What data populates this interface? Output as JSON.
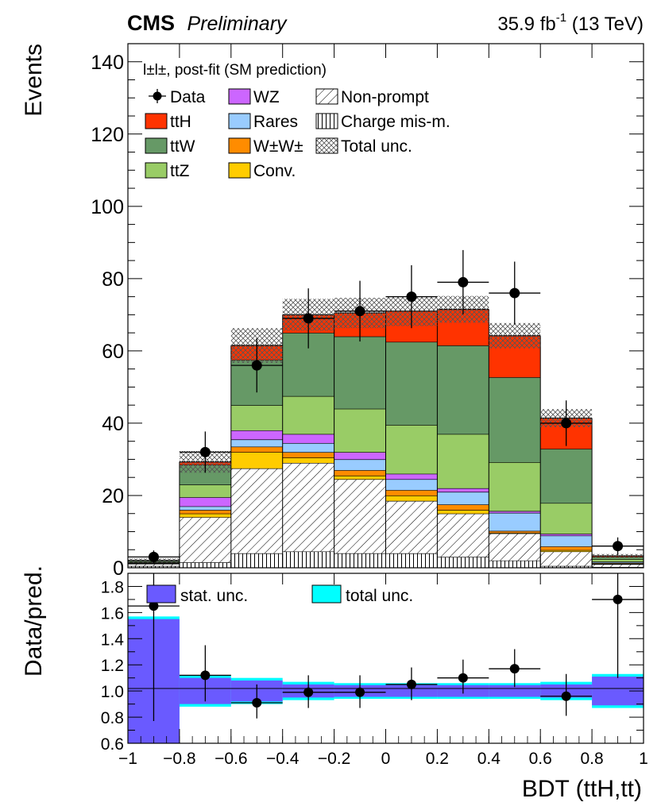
{
  "header": {
    "experiment": "CMS",
    "status": "Preliminary",
    "lumi_text": "35.9 fb",
    "lumi_sup": "-1",
    "energy": " (13 TeV)"
  },
  "chart_data": [
    {
      "type": "bar",
      "stacked": true,
      "panel": "main",
      "title": "CMS Preliminary",
      "ylabel": "Events",
      "xlabel": "",
      "channel_label": "l±l±, post-fit (SM prediction)",
      "ylim": [
        0,
        145
      ],
      "yticks": [
        0,
        20,
        40,
        60,
        80,
        100,
        120,
        140
      ],
      "bin_edges": [
        -1,
        -0.8,
        -0.6,
        -0.4,
        -0.2,
        0,
        0.2,
        0.4,
        0.6,
        0.8,
        1
      ],
      "series": [
        {
          "name": "Charge mis-m.",
          "color": "#ffffff",
          "pattern": "vertical",
          "values": [
            0.5,
            1.5,
            4.0,
            4.5,
            4.0,
            4.0,
            3.0,
            2.0,
            0.5,
            0.2
          ]
        },
        {
          "name": "Non-prompt",
          "color": "#ffffff",
          "pattern": "diagonal",
          "values": [
            0.6,
            12.5,
            23.5,
            24.5,
            20.5,
            14.5,
            12.0,
            7.5,
            4.0,
            0.8
          ]
        },
        {
          "name": "Conv.",
          "color": "#ffcc00",
          "values": [
            0.1,
            1.0,
            4.5,
            1.5,
            1.0,
            1.5,
            1.0,
            0.2,
            0.4,
            0.1
          ]
        },
        {
          "name": "W±W±",
          "color": "#ff8c00",
          "values": [
            0.1,
            1.0,
            1.5,
            1.5,
            1.5,
            1.5,
            1.5,
            0.5,
            1.0,
            0.2
          ]
        },
        {
          "name": "Rares",
          "color": "#99ccff",
          "values": [
            0.1,
            1.0,
            2.0,
            2.5,
            3.0,
            3.0,
            3.5,
            5.0,
            3.0,
            0.3
          ]
        },
        {
          "name": "WZ",
          "color": "#cc66ff",
          "values": [
            0.1,
            2.5,
            2.5,
            2.5,
            2.0,
            1.5,
            1.0,
            0.5,
            0.5,
            0.1
          ]
        },
        {
          "name": "ttZ",
          "color": "#99cc66",
          "values": [
            0.2,
            3.5,
            7.0,
            10.5,
            12.0,
            13.5,
            15.0,
            13.5,
            8.5,
            0.7
          ]
        },
        {
          "name": "ttW",
          "color": "#669966",
          "values": [
            0.3,
            5.5,
            12.5,
            17.5,
            20.0,
            23.0,
            24.5,
            23.5,
            15.0,
            0.6
          ]
        },
        {
          "name": "ttH",
          "color": "#ff3300",
          "values": [
            0.0,
            0.8,
            4.0,
            5.0,
            6.5,
            8.5,
            10.0,
            11.5,
            8.5,
            0.3
          ]
        }
      ],
      "total_unc": [
        0.6,
        3.0,
        4.8,
        4.4,
        4.2,
        4.1,
        3.7,
        3.5,
        2.5,
        0.5
      ],
      "data": {
        "name": "Data",
        "x": [
          -0.9,
          -0.7,
          -0.5,
          -0.3,
          -0.1,
          0.1,
          0.3,
          0.5,
          0.7,
          0.9
        ],
        "y": [
          3,
          32,
          56,
          69,
          71,
          75,
          79,
          76,
          40,
          6
        ],
        "yerr": [
          1.8,
          5.7,
          7.5,
          8.3,
          8.4,
          8.7,
          8.9,
          8.7,
          6.3,
          2.4
        ]
      },
      "legend": [
        {
          "label": "Data",
          "kind": "marker"
        },
        {
          "label": "ttH",
          "kind": "fill",
          "color": "#ff3300"
        },
        {
          "label": "ttW",
          "kind": "fill",
          "color": "#669966"
        },
        {
          "label": "ttZ",
          "kind": "fill",
          "color": "#99cc66"
        },
        {
          "label": "WZ",
          "kind": "fill",
          "color": "#cc66ff"
        },
        {
          "label": "Rares",
          "kind": "fill",
          "color": "#99ccff"
        },
        {
          "label": "W±W±",
          "kind": "fill",
          "color": "#ff8c00"
        },
        {
          "label": "Conv.",
          "kind": "fill",
          "color": "#ffcc00"
        },
        {
          "label": "Non-prompt",
          "kind": "hatch-diag"
        },
        {
          "label": "Charge mis-m.",
          "kind": "hatch-vert"
        },
        {
          "label": "Total unc.",
          "kind": "hatch-cross"
        }
      ],
      "legend_position": "top-left",
      "grid": false
    },
    {
      "type": "bar",
      "panel": "ratio",
      "ylabel": "Data/pred.",
      "xlabel": "BDT (ttH,tt)",
      "ylim": [
        0.6,
        1.9
      ],
      "yticks": [
        0.6,
        0.8,
        1.0,
        1.2,
        1.4,
        1.6,
        1.8
      ],
      "ytick_labels": [
        "0.6",
        "0.8",
        "1.0",
        "1.2",
        "1.4",
        "1.6",
        "1.8"
      ],
      "xlim": [
        -1,
        1
      ],
      "xticks": [
        -1,
        -0.8,
        -0.6,
        -0.4,
        -0.2,
        0,
        0.2,
        0.4,
        0.6,
        0.8,
        1
      ],
      "xtick_labels": [
        "−1",
        "−0.8",
        "−0.6",
        "−0.4",
        "−0.2",
        "0",
        "0.2",
        "0.4",
        "0.6",
        "0.8",
        "1"
      ],
      "bin_edges": [
        -1,
        -0.8,
        -0.6,
        -0.4,
        -0.2,
        0,
        0.2,
        0.4,
        0.6,
        0.8,
        1
      ],
      "reference_line": 1.0,
      "series": [
        {
          "name": "total unc.",
          "color": "#00ffff",
          "values": [
            0.57,
            0.12,
            0.1,
            0.07,
            0.06,
            0.06,
            0.06,
            0.06,
            0.07,
            0.13
          ]
        },
        {
          "name": "stat. unc.",
          "color": "#6a5aff",
          "values": [
            0.55,
            0.1,
            0.08,
            0.05,
            0.045,
            0.045,
            0.045,
            0.045,
            0.05,
            0.11
          ]
        }
      ],
      "data": {
        "x": [
          -0.9,
          -0.7,
          -0.5,
          -0.3,
          -0.1,
          0.1,
          0.3,
          0.5,
          0.7,
          0.9
        ],
        "y": [
          1.65,
          1.12,
          0.91,
          0.99,
          0.99,
          1.05,
          1.1,
          1.17,
          0.96,
          1.7
        ],
        "yerr_low": [
          0.88,
          0.2,
          0.12,
          0.12,
          0.12,
          0.12,
          0.12,
          0.14,
          0.15,
          0.6
        ],
        "yerr_high": [
          0.88,
          0.23,
          0.14,
          0.13,
          0.13,
          0.13,
          0.14,
          0.15,
          0.17,
          0.7
        ]
      },
      "legend": [
        {
          "label": "stat. unc.",
          "color": "#6a5aff"
        },
        {
          "label": "total unc.",
          "color": "#00ffff"
        }
      ],
      "legend_position": "top",
      "grid": false
    }
  ]
}
